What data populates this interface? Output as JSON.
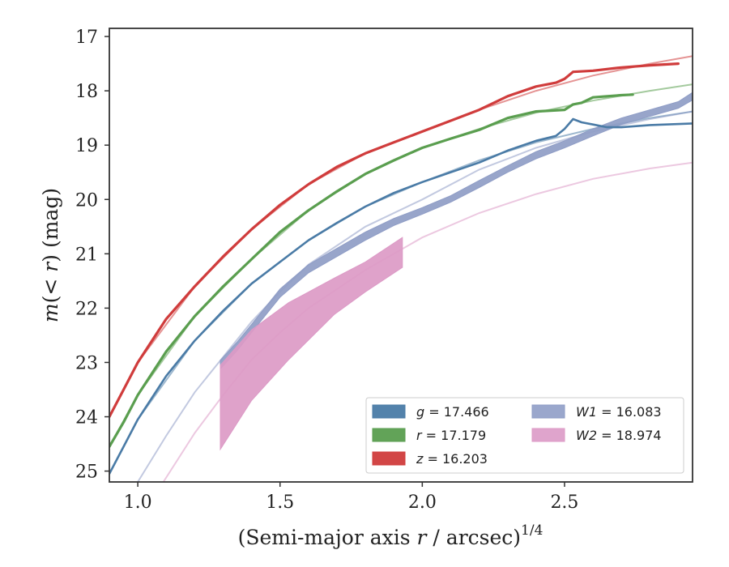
{
  "chart_data": {
    "type": "line",
    "title": "",
    "xlabel": "(Semi-major axis r / arcsec)^{1/4}",
    "xlabel_parts": {
      "pre": "(Semi-major axis ",
      "var": "r",
      "post": " / arcsec)",
      "sup": "1/4"
    },
    "ylabel": "m(< r) (mag)",
    "ylabel_parts": {
      "m": "m",
      "open": "(",
      "lt": "< ",
      "r": "r",
      "close": ")",
      "unit": " (mag)"
    },
    "xlim": [
      0.9,
      2.95
    ],
    "ylim": [
      25.2,
      16.85
    ],
    "y_inverted": true,
    "x_ticks": [
      1.0,
      1.5,
      2.0,
      2.5
    ],
    "x_tick_labels": [
      "1.0",
      "1.5",
      "2.0",
      "2.5"
    ],
    "y_ticks": [
      17,
      18,
      19,
      20,
      21,
      22,
      23,
      24,
      25
    ],
    "y_tick_labels": [
      "17",
      "18",
      "19",
      "20",
      "21",
      "22",
      "23",
      "24",
      "25"
    ],
    "grid": false,
    "legend_position": "lower-right",
    "legend_columns": 2,
    "series": [
      {
        "name": "g = 17.466",
        "label_var": "g",
        "label_val": "17.466",
        "color": "#4a7ba6",
        "kind": "line",
        "x": [
          0.9,
          0.95,
          1.0,
          1.1,
          1.2,
          1.3,
          1.4,
          1.5,
          1.6,
          1.7,
          1.8,
          1.9,
          2.0,
          2.1,
          2.2,
          2.3,
          2.4,
          2.47,
          2.5,
          2.53,
          2.56,
          2.6,
          2.65,
          2.7,
          2.8,
          2.95
        ],
        "y": [
          25.05,
          24.55,
          24.05,
          23.25,
          22.6,
          22.05,
          21.55,
          21.15,
          20.75,
          20.43,
          20.13,
          19.88,
          19.68,
          19.5,
          19.32,
          19.1,
          18.92,
          18.83,
          18.7,
          18.52,
          18.58,
          18.62,
          18.67,
          18.67,
          18.63,
          18.6
        ]
      },
      {
        "name": "r = 17.179",
        "label_var": "r",
        "label_val": "17.179",
        "color": "#5a9e4f",
        "kind": "line",
        "x": [
          0.9,
          0.95,
          1.0,
          1.1,
          1.2,
          1.3,
          1.4,
          1.5,
          1.6,
          1.7,
          1.8,
          1.9,
          2.0,
          2.1,
          2.2,
          2.3,
          2.4,
          2.5,
          2.53,
          2.56,
          2.6,
          2.65,
          2.7,
          2.74
        ],
        "y": [
          24.55,
          24.1,
          23.6,
          22.8,
          22.15,
          21.6,
          21.1,
          20.6,
          20.2,
          19.85,
          19.53,
          19.28,
          19.05,
          18.88,
          18.72,
          18.5,
          18.38,
          18.35,
          18.25,
          18.22,
          18.12,
          18.1,
          18.08,
          18.07
        ]
      },
      {
        "name": "z = 16.203",
        "label_var": "z",
        "label_val": "16.203",
        "color": "#d03c3c",
        "kind": "line",
        "x": [
          0.9,
          0.95,
          1.0,
          1.1,
          1.2,
          1.3,
          1.4,
          1.5,
          1.6,
          1.7,
          1.8,
          1.9,
          2.0,
          2.1,
          2.2,
          2.3,
          2.4,
          2.47,
          2.5,
          2.53,
          2.6,
          2.7,
          2.8,
          2.9
        ],
        "y": [
          24.0,
          23.5,
          23.0,
          22.2,
          21.6,
          21.05,
          20.55,
          20.1,
          19.72,
          19.4,
          19.15,
          18.95,
          18.75,
          18.55,
          18.35,
          18.1,
          17.92,
          17.85,
          17.78,
          17.65,
          17.63,
          17.57,
          17.53,
          17.5
        ]
      },
      {
        "name": "W1 = 16.083",
        "label_var": "W1",
        "label_val": "16.083",
        "color": "#8f9dc6",
        "kind": "band",
        "x": [
          1.29,
          1.35,
          1.4,
          1.5,
          1.6,
          1.7,
          1.8,
          1.9,
          2.0,
          2.1,
          2.2,
          2.3,
          2.4,
          2.5,
          2.6,
          2.7,
          2.8,
          2.9,
          2.95
        ],
        "y_upper": [
          22.96,
          22.62,
          22.3,
          21.65,
          21.2,
          20.9,
          20.6,
          20.35,
          20.15,
          19.93,
          19.65,
          19.38,
          19.12,
          18.92,
          18.7,
          18.5,
          18.35,
          18.2,
          18.03
        ],
        "y_lower": [
          23.12,
          22.78,
          22.45,
          21.8,
          21.35,
          21.05,
          20.75,
          20.48,
          20.27,
          20.05,
          19.78,
          19.5,
          19.25,
          19.05,
          18.83,
          18.62,
          18.47,
          18.32,
          18.17
        ]
      },
      {
        "name": "W2 = 18.974",
        "label_var": "W2",
        "label_val": "18.974",
        "color": "#dc9ac6",
        "kind": "band",
        "x": [
          1.29,
          1.4,
          1.53,
          1.69,
          1.8,
          1.93
        ],
        "y_upper": [
          23.05,
          22.4,
          21.9,
          21.45,
          21.15,
          20.7
        ],
        "y_lower": [
          24.6,
          23.7,
          22.95,
          22.12,
          21.7,
          21.25
        ]
      }
    ],
    "model_curves": [
      {
        "color": "#4a7ba6",
        "x": [
          0.9,
          1.0,
          1.2,
          1.4,
          1.6,
          1.8,
          2.0,
          2.2,
          2.4,
          2.6,
          2.8,
          2.95
        ],
        "y": [
          25.05,
          24.05,
          22.6,
          21.55,
          20.75,
          20.13,
          19.68,
          19.28,
          18.95,
          18.7,
          18.5,
          18.38
        ]
      },
      {
        "color": "#5a9e4f",
        "x": [
          0.9,
          1.0,
          1.2,
          1.4,
          1.6,
          1.8,
          2.0,
          2.2,
          2.4,
          2.6,
          2.8,
          2.95
        ],
        "y": [
          24.55,
          23.6,
          22.15,
          21.1,
          20.2,
          19.53,
          19.05,
          18.7,
          18.4,
          18.18,
          18.0,
          17.88
        ]
      },
      {
        "color": "#d03c3c",
        "x": [
          0.9,
          1.0,
          1.2,
          1.4,
          1.6,
          1.8,
          2.0,
          2.2,
          2.4,
          2.6,
          2.8,
          2.95
        ],
        "y": [
          24.0,
          23.0,
          21.6,
          20.55,
          19.72,
          19.15,
          18.75,
          18.35,
          18.0,
          17.72,
          17.5,
          17.36
        ]
      },
      {
        "color": "#8f9dc6",
        "x": [
          1.0,
          1.1,
          1.2,
          1.3,
          1.4,
          1.5,
          1.6,
          1.8,
          2.0,
          2.2,
          2.4,
          2.6,
          2.8,
          2.95
        ],
        "y": [
          25.2,
          24.35,
          23.55,
          22.9,
          22.25,
          21.7,
          21.2,
          20.5,
          20.0,
          19.45,
          19.05,
          18.75,
          18.52,
          18.38
        ]
      },
      {
        "color": "#dc9ac6",
        "x": [
          1.09,
          1.2,
          1.3,
          1.4,
          1.5,
          1.6,
          1.8,
          2.0,
          2.2,
          2.4,
          2.6,
          2.8,
          2.95
        ],
        "y": [
          25.2,
          24.3,
          23.6,
          22.95,
          22.45,
          22.0,
          21.3,
          20.7,
          20.25,
          19.9,
          19.62,
          19.43,
          19.32
        ]
      }
    ]
  }
}
